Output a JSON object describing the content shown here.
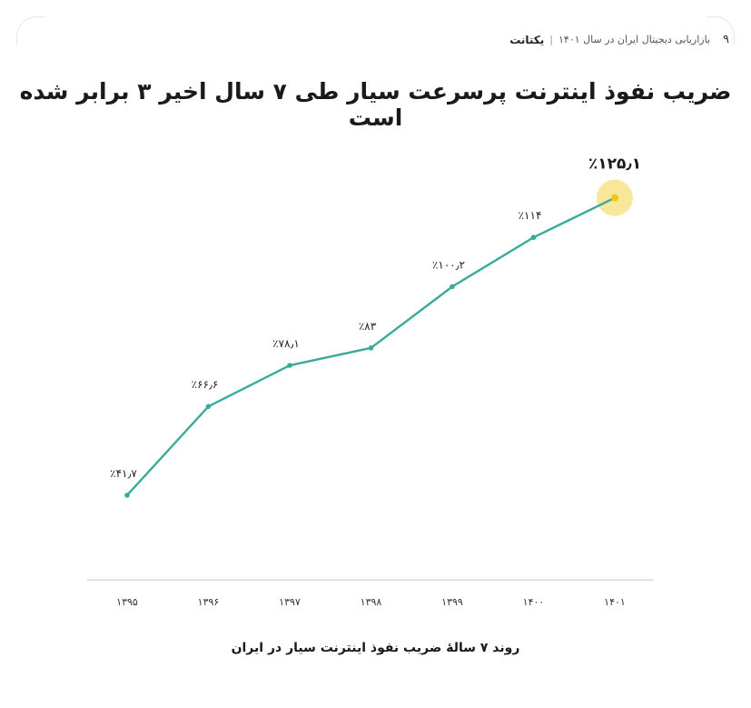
{
  "header": {
    "page_number": "۹",
    "report_title": "بازاریابی دیجیتال ایران در سال ۱۴۰۱",
    "separator": "|",
    "brand": "یکتانت"
  },
  "title": "ضریب نفوذ اینترنت پرسرعت سیار طی ۷ سال اخیر ۳ برابر شده است",
  "caption": "روند ۷ سالهٔ ضریب نفوذ اینترنت سیار در ایران",
  "colors": {
    "line": "#3aaa9a",
    "highlight": "#f2c60f",
    "highlight_glow": "#f7e38a",
    "axis": "#cfcfcf"
  },
  "chart_data": {
    "type": "line",
    "categories": [
      "۱۳۹۵",
      "۱۳۹۶",
      "۱۳۹۷",
      "۱۳۹۸",
      "۱۳۹۹",
      "۱۴۰۰",
      "۱۴۰۱"
    ],
    "values": [
      41.7,
      66.6,
      78.1,
      83,
      100.2,
      114,
      125.1
    ],
    "data_labels": [
      "٪۴۱٫۷",
      "٪۶۶٫۶",
      "٪۷۸٫۱",
      "٪۸۳",
      "٪۱۰۰٫۲",
      "٪۱۱۴",
      "٪۱۲۵٫۱"
    ],
    "highlight_index": 6,
    "ylim": [
      20,
      150
    ],
    "grid": false
  }
}
